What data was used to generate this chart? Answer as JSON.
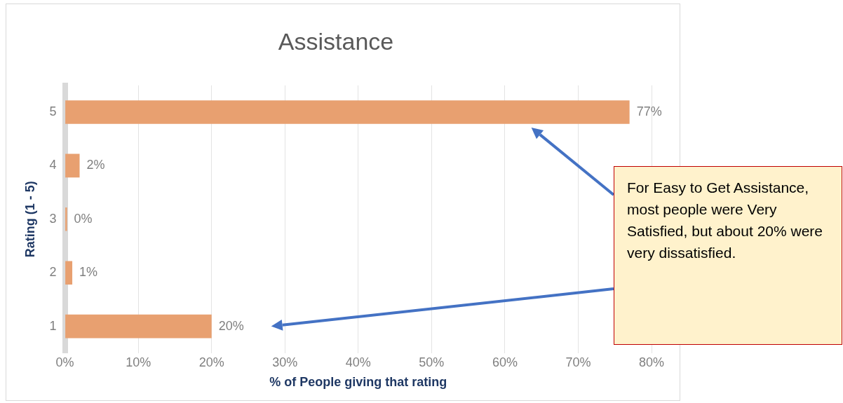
{
  "chart_data": {
    "type": "bar",
    "orientation": "horizontal",
    "title": "Assistance",
    "xlabel": "% of People giving that rating",
    "ylabel": "Rating (1 - 5)",
    "categories": [
      "5",
      "4",
      "3",
      "2",
      "1"
    ],
    "values": [
      77,
      2,
      0,
      1,
      20
    ],
    "value_labels": [
      "77%",
      "2%",
      "0%",
      "1%",
      "20%"
    ],
    "color": "#e8a070",
    "xlim": [
      0,
      80
    ],
    "xticks": [
      {
        "value": 0,
        "label": "0%"
      },
      {
        "value": 10,
        "label": "10%"
      },
      {
        "value": 20,
        "label": "20%"
      },
      {
        "value": 30,
        "label": "30%"
      },
      {
        "value": 40,
        "label": "40%"
      },
      {
        "value": 50,
        "label": "50%"
      },
      {
        "value": 60,
        "label": "60%"
      },
      {
        "value": 70,
        "label": "70%"
      },
      {
        "value": 80,
        "label": "80%"
      }
    ],
    "grid": "x",
    "annotations": [
      "For Easy to Get Assistance, most people were Very Satisfied, but about 20% were very dissatisfied."
    ]
  }
}
